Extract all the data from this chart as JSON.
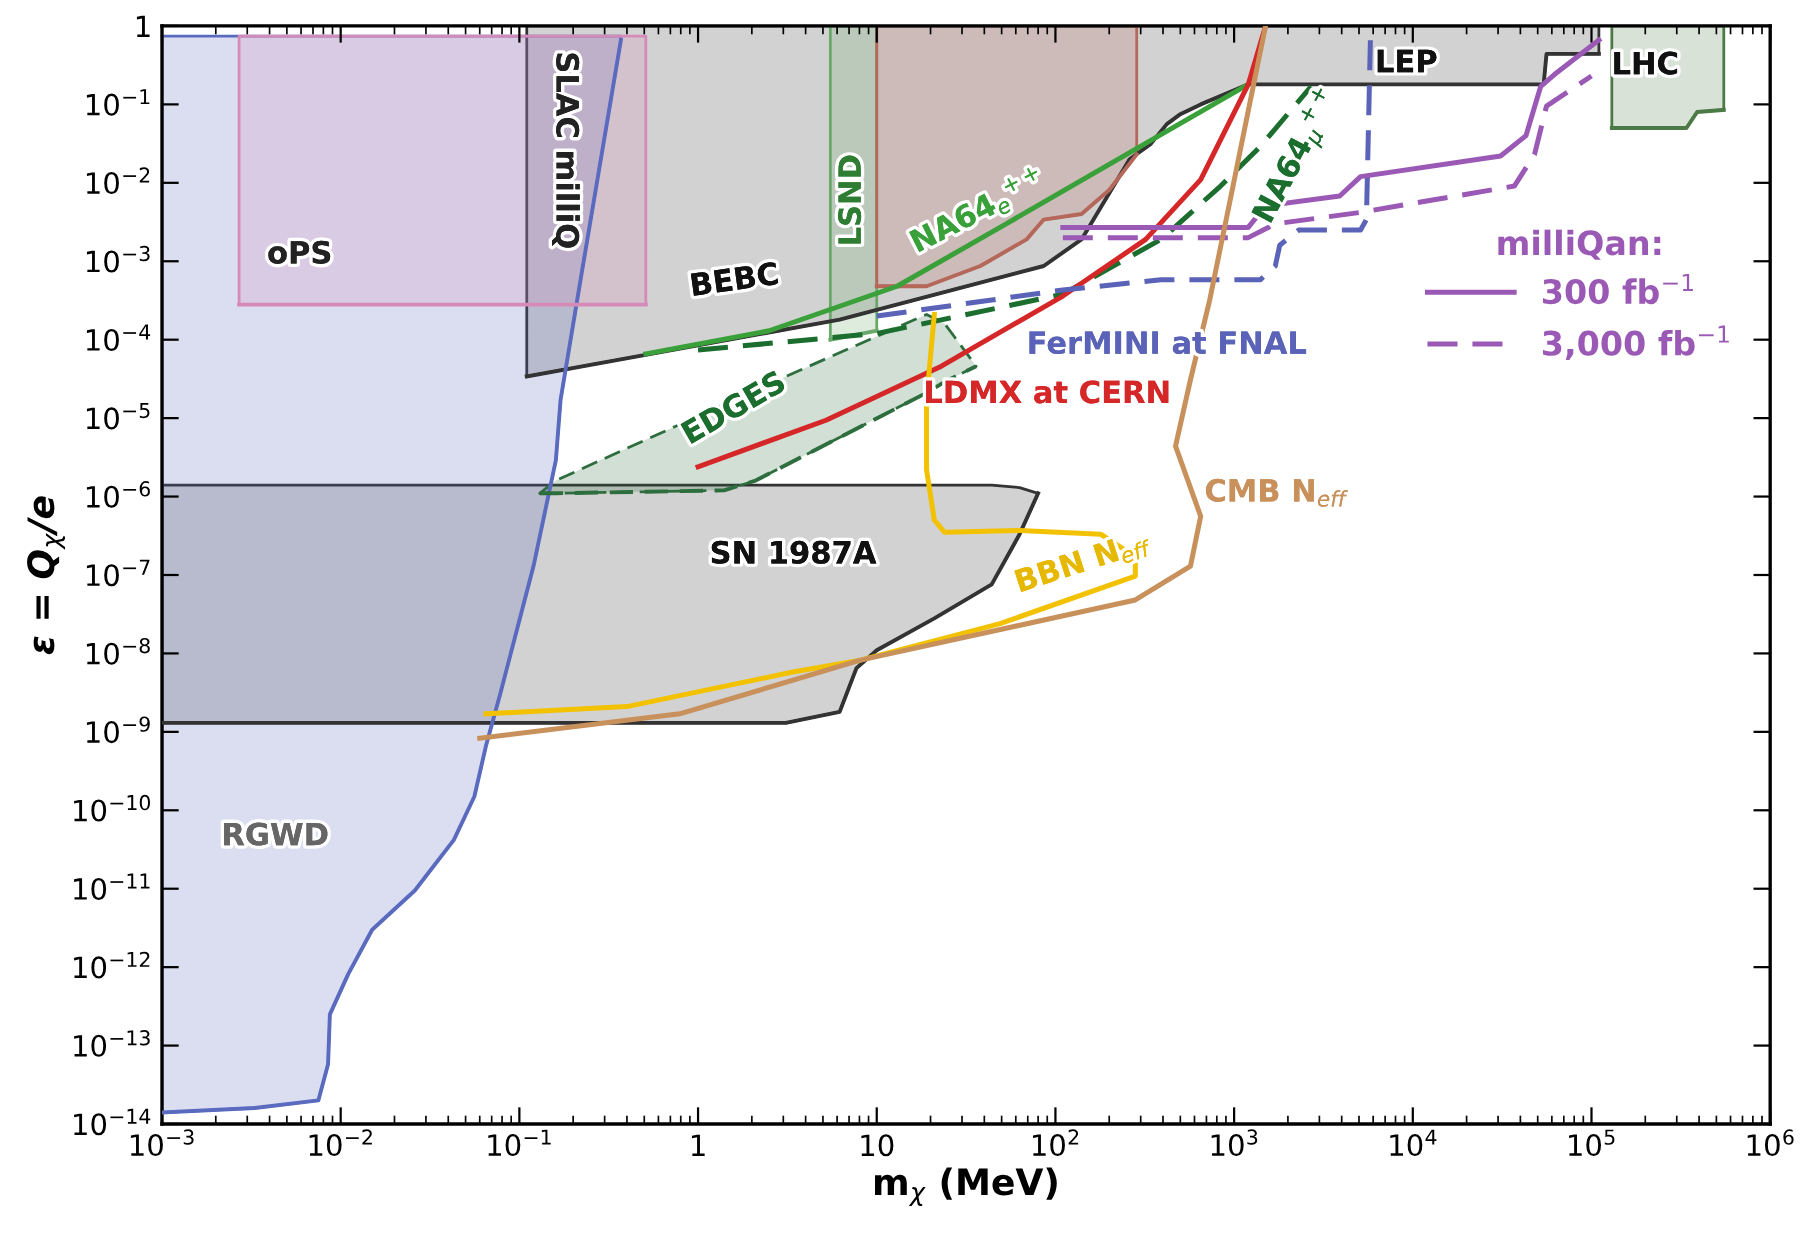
{
  "chart_data": {
    "type": "line",
    "log": "xy",
    "xlabel": "m$_{χ}$ (MeV)",
    "ylabel": "ε = Q$_{χ}$/e",
    "xlim": [
      0.001,
      1000000
    ],
    "ylim": [
      1e-14,
      1
    ],
    "xticks": [
      {
        "value": 0.001,
        "label": "10$^{−3}$"
      },
      {
        "value": 0.01,
        "label": "10$^{−2}$"
      },
      {
        "value": 0.1,
        "label": "10$^{−1}$"
      },
      1,
      10,
      {
        "value": 100,
        "label": "10$^{2}$"
      },
      {
        "value": 1000,
        "label": "10$^{3}$"
      },
      {
        "value": 10000,
        "label": "10$^{4}$"
      },
      {
        "value": 100000,
        "label": "10$^{5}$"
      },
      {
        "value": 1000000,
        "label": "10$^{6}$"
      }
    ],
    "yticks": [
      {
        "value": 1e-14,
        "label": "10$^{−14}$"
      },
      {
        "value": 1e-13,
        "label": "10$^{−13}$"
      },
      {
        "value": 1e-12,
        "label": "10$^{−12}$"
      },
      {
        "value": 1e-11,
        "label": "10$^{−11}$"
      },
      {
        "value": 1e-10,
        "label": "10$^{−10}$"
      },
      {
        "value": 1e-09,
        "label": "10$^{−9}$"
      },
      {
        "value": 1e-08,
        "label": "10$^{−8}$"
      },
      {
        "value": 1e-07,
        "label": "10$^{−7}$"
      },
      {
        "value": 1e-06,
        "label": "10$^{−6}$"
      },
      {
        "value": 1e-05,
        "label": "10$^{−5}$"
      },
      {
        "value": 0.0001,
        "label": "10$^{−4}$"
      },
      {
        "value": 0.001,
        "label": "10$^{−3}$"
      },
      {
        "value": 0.01,
        "label": "10$^{−2}$"
      },
      {
        "value": 0.1,
        "label": "10$^{−1}$"
      },
      1
    ],
    "legend": "right",
    "legend_title": "milliQan:",
    "series": [
      {
        "color": "#333333",
        "x": [
          0.11,
          6.2,
          86,
          140,
          260,
          340,
          420,
          500,
          650,
          1200,
          54000,
          56000,
          110000
        ],
        "values": [
          3.4e-05,
          0.00018,
          0.00087,
          0.0019,
          0.02,
          0.031,
          0.056,
          0.075,
          0.1,
          0.18,
          0.18,
          0.44,
          0.44
        ],
        "lower": [
          3.4e-05,
          0.00018,
          0.00087,
          0.0019,
          0.02,
          0.031,
          0.056,
          0.075,
          0.1,
          0.18,
          0.18,
          0.44,
          0.44
        ],
        "upper": [
          1,
          1,
          1,
          1,
          1,
          1,
          1,
          1,
          1,
          1,
          1,
          1,
          1
        ]
      },
      {
        "color": "#333333",
        "x": [
          0.001,
          3.1,
          6.2,
          7.7,
          10,
          21,
          44,
          63,
          80
        ],
        "values": [
          1.3e-09,
          1.3e-09,
          1.8e-09,
          6.5e-09,
          1.1e-08,
          2.8e-08,
          7.6e-08,
          3.3e-07,
          1.1e-06
        ],
        "lower": [
          1.3e-09,
          1.3e-09,
          1.8e-09,
          6.5e-09,
          1.1e-08,
          2.8e-08,
          7.6e-08,
          3.3e-07,
          1.1e-06
        ],
        "upper": [
          1.4e-06,
          1.4e-06,
          1.4e-06,
          1.4e-06,
          1.4e-06,
          1.4e-06,
          1.4e-06,
          1.3e-06,
          1.1e-06
        ]
      },
      {
        "color": "#5a6bbf",
        "x": [
          0.001,
          0.0033,
          0.0075,
          0.0085,
          0.0087,
          0.011,
          0.015,
          0.026,
          0.043,
          0.056,
          0.065,
          0.078,
          0.12,
          0.16,
          0.17,
          0.22,
          0.37
        ],
        "values": [
          1.4e-14,
          1.6e-14,
          2e-14,
          5.8e-14,
          2.5e-13,
          8.1e-13,
          3e-12,
          9.5e-12,
          4.2e-11,
          1.5e-10,
          6.6e-10,
          3e-09,
          1.3e-07,
          2.9e-06,
          1.7e-05,
          0.00058,
          0.66
        ],
        "lower": [
          1.4e-14,
          1.6e-14,
          2e-14,
          5.8e-14,
          2.5e-13,
          8.1e-13,
          3e-12,
          9.5e-12,
          4.2e-11,
          1.5e-10,
          6.6e-10,
          3e-09,
          1.3e-07,
          2.9e-06,
          1.7e-05,
          0.00058,
          0.66
        ],
        "upper": [
          0.74,
          0.74,
          0.74,
          0.74,
          0.74,
          0.74,
          0.74,
          0.74,
          0.74,
          0.74,
          0.74,
          0.74,
          0.74,
          0.74,
          0.74,
          0.74,
          0.74
        ]
      },
      {
        "color": "#d58ab8",
        "x": [
          0.0027,
          0.51
        ],
        "values": [
          0.00028,
          0.00028
        ],
        "lower": [
          0.00028,
          0.00028
        ],
        "upper": [
          0.74,
          0.74
        ]
      },
      {
        "color": "#6aa86a",
        "x": [
          5.5,
          10
        ],
        "values": [
          0.0001,
          0.00013
        ],
        "lower": [
          0.0001,
          0.00013
        ],
        "upper": [
          1,
          1
        ]
      },
      {
        "color": "#b5675a",
        "x": [
          10,
          19,
          38,
          69,
          86,
          140,
          200,
          285
        ],
        "values": [
          0.00048,
          0.00048,
          0.00087,
          0.0019,
          0.0034,
          0.004,
          0.0081,
          0.023
        ],
        "lower": [
          0.00048,
          0.00048,
          0.00087,
          0.0019,
          0.0034,
          0.004,
          0.0081,
          0.023
        ],
        "upper": [
          1,
          1,
          1,
          1,
          1,
          1,
          1,
          1
        ]
      },
      {
        "color": "#2e6e3e",
        "line_style": "dashed",
        "x": [
          0.13,
          0.16,
          1.4,
          2.1,
          19,
          24,
          36
        ],
        "values": [
          1.1e-06,
          1.1e-06,
          1.2e-06,
          1.6e-06,
          2.1e-05,
          2.9e-05,
          4.6e-05
        ],
        "lower": [
          1.1e-06,
          1.1e-06,
          1.2e-06,
          1.6e-06,
          2.1e-05,
          2.9e-05,
          4.6e-05
        ],
        "upper": [
          1.1e-06,
          1.6e-06,
          1.5e-05,
          2.3e-05,
          0.00021,
          0.00016,
          4.6e-05
        ]
      },
      {
        "color": "#4c7a46",
        "x": [
          130000,
          340000,
          390000,
          550000
        ],
        "values": [
          0.05,
          0.05,
          0.08,
          0.085
        ],
        "lower": [
          0.05,
          0.05,
          0.08,
          0.085
        ],
        "upper": [
          1,
          1,
          1,
          1
        ]
      },
      {
        "color": "#3aa03a",
        "x": [
          0.51,
          2.5,
          13,
          53,
          250,
          1200
        ],
        "values": [
          6.6e-05,
          0.00013,
          0.00048,
          0.003,
          0.023,
          0.18
        ]
      },
      {
        "color": "#1b6e2e",
        "line_style": "dashed",
        "x": [
          1.0,
          10,
          110,
          390,
          840,
          1400,
          2700
        ],
        "values": [
          7.4e-05,
          0.00012,
          0.00038,
          0.0019,
          0.0091,
          0.029,
          0.17
        ]
      },
      {
        "color": "#d62728",
        "x": [
          1.0,
          5.2,
          23,
          110,
          320,
          650,
          1200,
          1500
        ],
        "values": [
          2.4e-06,
          9.4e-06,
          4.6e-05,
          0.00036,
          0.0019,
          0.011,
          0.18,
          1.0
        ]
      },
      {
        "color": "#5a63b8",
        "line_style": "dashed",
        "x": [
          10,
          110,
          390,
          1400,
          1700,
          1800,
          2300,
          5100,
          5500,
          5800
        ],
        "values": [
          0.0002,
          0.00043,
          0.00058,
          0.00058,
          0.00087,
          0.0016,
          0.0025,
          0.0025,
          0.0034,
          0.79
        ]
      },
      {
        "color": "#9b59b6",
        "name": "300 fb$^{−1}$",
        "x": [
          110,
          1200,
          1500,
          3900,
          5100,
          31000,
          43000,
          52000,
          62000,
          110000
        ],
        "values": [
          0.0027,
          0.0027,
          0.0051,
          0.0068,
          0.012,
          0.022,
          0.04,
          0.17,
          0.24,
          0.66
        ]
      },
      {
        "color": "#9b59b6",
        "name": "3,000 fb$^{−1}$",
        "line_style": "dashed",
        "x": [
          110,
          1200,
          1700,
          5100,
          37000,
          48000,
          56000,
          100000
        ],
        "values": [
          0.002,
          0.002,
          0.003,
          0.0042,
          0.0091,
          0.023,
          0.095,
          0.23
        ]
      },
      {
        "color": "#f2c200",
        "x": [
          0.065,
          0.4,
          3.4,
          8.1,
          49,
          280,
          280,
          180,
          63,
          24,
          21,
          19,
          19,
          21
        ],
        "values": [
          1.7e-09,
          2.1e-09,
          5.8e-09,
          8.2e-09,
          2.4e-08,
          9.7e-08,
          1.7e-07,
          3.3e-07,
          3.7e-07,
          3.5e-07,
          5e-07,
          2.2e-06,
          1.7e-05,
          0.00021
        ]
      },
      {
        "color": "#c8905a",
        "x": [
          0.06,
          0.79,
          8.1,
          280,
          570,
          650,
          470,
          570,
          730,
          950,
          1230,
          1500
        ],
        "values": [
          8.3e-10,
          1.7e-09,
          8.2e-09,
          4.8e-08,
          1.3e-07,
          5.6e-07,
          4.4e-06,
          3.1e-05,
          0.00032,
          0.006,
          0.11,
          1.0
        ]
      }
    ],
    "annotations": [
      "oPS",
      "SLAC milliQ",
      "LSND",
      "BEBC",
      {
        "text": "NA64$_{e}$$^{++}$",
        "x": 38,
        "y": 0.0021
      },
      "NA64$_{μ}$$^{++}$",
      "LEP",
      "LHC",
      "FerMINI at FNAL",
      {
        "text": "LDMX at CERN",
        "x": 78,
        "y": 0.00023
      },
      "EDGES",
      "CMB N$_{eff}$",
      "SN 1987A",
      "BBN N$_{eff}$",
      "RGWD"
    ]
  }
}
